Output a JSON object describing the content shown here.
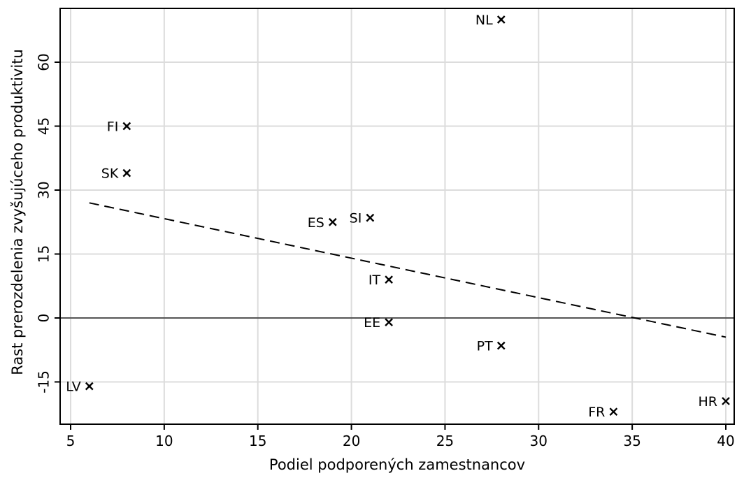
{
  "chart_data": {
    "type": "scatter",
    "title": "",
    "xlabel": "Podiel podporených zamestnancov",
    "ylabel": "Rast prerozdelenia zvyšujúceho produktivitu",
    "xlim": [
      4.5,
      40.5
    ],
    "ylim": [
      -25,
      72
    ],
    "xticks": [
      5,
      10,
      15,
      20,
      25,
      30,
      35,
      40
    ],
    "yticks": [
      -15,
      0,
      15,
      30,
      45,
      60
    ],
    "grid": true,
    "zero_line": true,
    "points": [
      {
        "label": "NL",
        "x": 28,
        "y": 70
      },
      {
        "label": "FI",
        "x": 8,
        "y": 45
      },
      {
        "label": "SK",
        "x": 8,
        "y": 34
      },
      {
        "label": "SI",
        "x": 21,
        "y": 23.5
      },
      {
        "label": "ES",
        "x": 19,
        "y": 22.5
      },
      {
        "label": "IT",
        "x": 22,
        "y": 9
      },
      {
        "label": "EE",
        "x": 22,
        "y": -1
      },
      {
        "label": "PT",
        "x": 28,
        "y": -6.5
      },
      {
        "label": "LV",
        "x": 6,
        "y": -16
      },
      {
        "label": "FR",
        "x": 34,
        "y": -22
      },
      {
        "label": "HR",
        "x": 40,
        "y": -19.5
      }
    ],
    "trendline": {
      "x": [
        6,
        40
      ],
      "y": [
        27,
        -4.5
      ],
      "style": "dashed"
    }
  }
}
